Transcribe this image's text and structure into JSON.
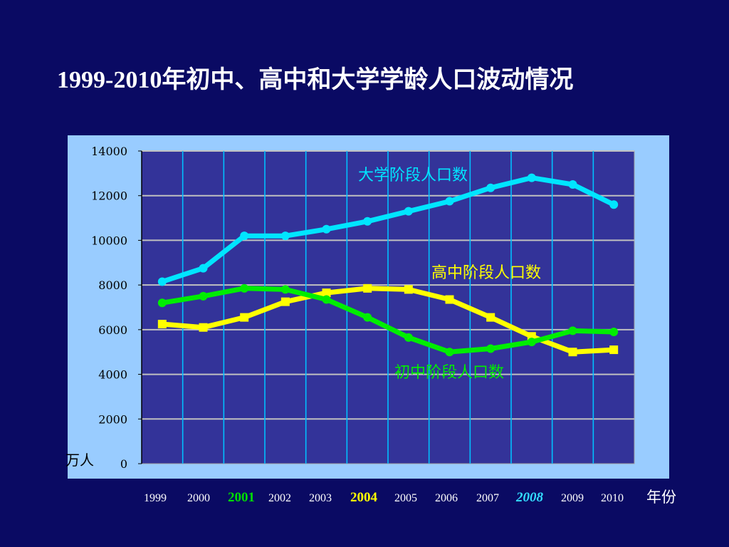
{
  "slide": {
    "title": "1999-2010年初中、高中和大学学龄人口波动情况"
  },
  "chart_data": {
    "type": "line",
    "x": [
      1999,
      2000,
      2001,
      2002,
      2003,
      2004,
      2005,
      2006,
      2007,
      2008,
      2009,
      2010
    ],
    "x_tick_labels": [
      "1999",
      "2000",
      "2001",
      "2002",
      "2003",
      "2004",
      "2005",
      "2006",
      "2007",
      "2008",
      "2009",
      "2010"
    ],
    "highlighted_ticks": {
      "2001": "#00dd00",
      "2004": "#ffff00",
      "2008": "#33ddff"
    },
    "xlabel": "年份",
    "ylabel": "万人",
    "ylim": [
      0,
      14000
    ],
    "y_ticks": [
      0,
      2000,
      4000,
      6000,
      8000,
      10000,
      12000,
      14000
    ],
    "grid": true,
    "series": [
      {
        "name": "大学阶段人口数",
        "color": "#00e5ff",
        "marker": "circle",
        "values": [
          8150,
          8750,
          10200,
          10200,
          10500,
          10850,
          11300,
          11750,
          12350,
          12800,
          12500,
          11600
        ]
      },
      {
        "name": "高中阶段人口数",
        "color": "#ffff00",
        "marker": "square",
        "values": [
          6250,
          6100,
          6550,
          7250,
          7650,
          7850,
          7800,
          7350,
          6550,
          5700,
          5000,
          5100
        ]
      },
      {
        "name": "初中阶段人口数",
        "color": "#00ee00",
        "marker": "circle",
        "values": [
          7200,
          7500,
          7850,
          7800,
          7350,
          6550,
          5650,
          5000,
          5150,
          5450,
          5950,
          5900
        ]
      }
    ]
  }
}
